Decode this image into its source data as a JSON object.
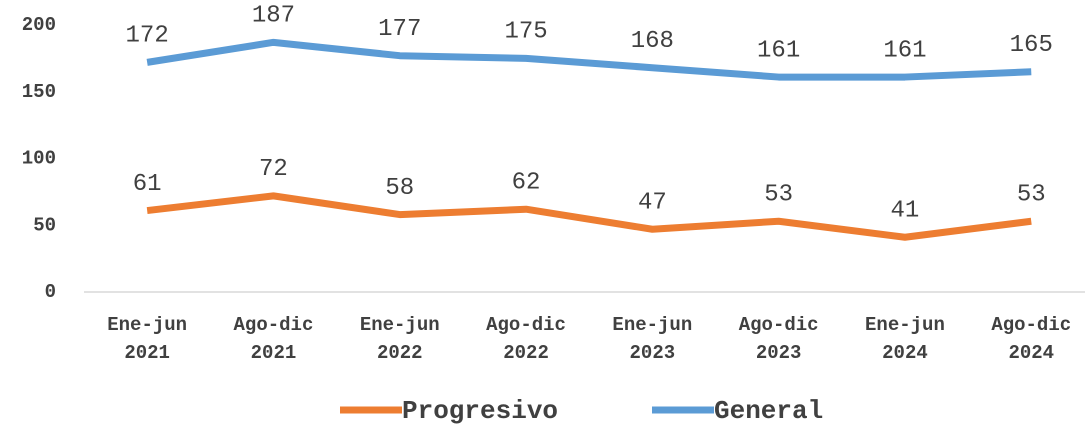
{
  "chart_data": {
    "type": "line",
    "categories": [
      "Ene-jun 2021",
      "Ago-dic 2021",
      "Ene-jun 2022",
      "Ago-dic 2022",
      "Ene-jun 2023",
      "Ago-dic 2023",
      "Ene-jun 2024",
      "Ago-dic 2024"
    ],
    "series": [
      {
        "name": "Progresivo",
        "color": "#ed7d31",
        "values": [
          61,
          72,
          58,
          62,
          47,
          53,
          41,
          53
        ]
      },
      {
        "name": "General",
        "color": "#5b9bd5",
        "values": [
          172,
          187,
          177,
          175,
          168,
          161,
          161,
          165
        ]
      }
    ],
    "ylim": [
      0,
      200
    ],
    "yticks": [
      0,
      50,
      100,
      150,
      200
    ],
    "grid": false,
    "legend": "bottom"
  }
}
